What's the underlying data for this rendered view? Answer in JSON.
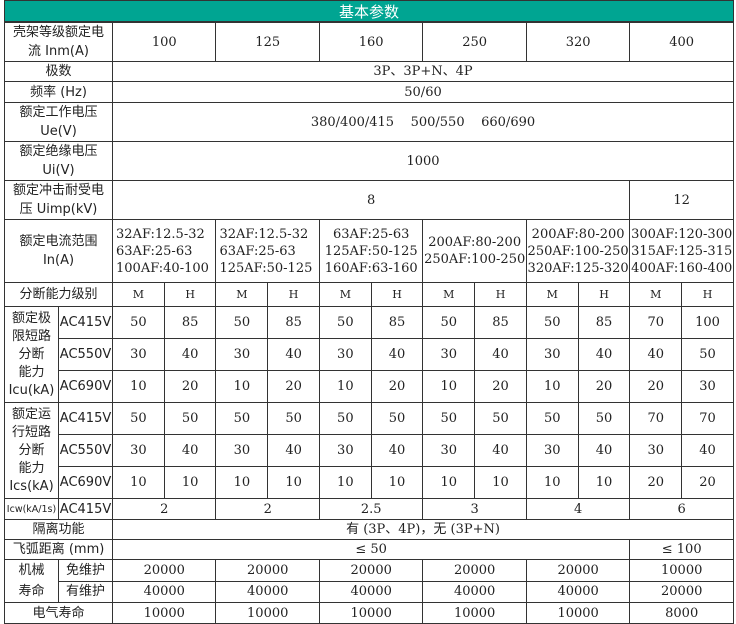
{
  "title": "基本参数",
  "frame_current": {
    "label": "壳架等级额定电\n流 Inm(A)",
    "values": [
      "100",
      "125",
      "160",
      "250",
      "320",
      "400"
    ]
  },
  "poles": {
    "label": "极数",
    "value": "3P、3P+N、4P"
  },
  "frequency": {
    "label": "频率 (Hz)",
    "value": "50/60"
  },
  "ue": {
    "label": "额定工作电压\nUe(V)",
    "value": "380/400/415    500/550    660/690"
  },
  "ui": {
    "label": "额定绝缘电压\nUi(V)",
    "value": "1000"
  },
  "uimp": {
    "label": "额定冲击耐受电\n压 Uimp(kV)",
    "values": [
      "8",
      "12"
    ]
  },
  "in_range": {
    "label": "额定电流范围\nIn(A)",
    "values": [
      "32AF:12.5-32\n63AF:25-63\n100AF:40-100",
      "32AF:12.5-32\n63AF:25-63\n125AF:50-125",
      "63AF:25-63\n125AF:50-125\n160AF:63-160",
      "200AF:80-200\n250AF:100-250",
      "200AF:80-200\n250AF:100-250\n320AF:125-320",
      "300AF:120-300\n315AF:125-315\n400AF:160-400"
    ]
  },
  "breaking_level": {
    "label": "分断能力级别",
    "values": [
      "M",
      "H",
      "M",
      "H",
      "M",
      "H",
      "M",
      "H",
      "M",
      "H",
      "M",
      "H"
    ]
  },
  "icu": {
    "label": "额定极\n限短路\n分断\n能力\nIcu(kA)",
    "rows": [
      {
        "voltage": "AC415V",
        "values": [
          "50",
          "85",
          "50",
          "85",
          "50",
          "85",
          "50",
          "85",
          "50",
          "85",
          "70",
          "100"
        ]
      },
      {
        "voltage": "AC550V",
        "values": [
          "30",
          "40",
          "30",
          "40",
          "30",
          "40",
          "30",
          "40",
          "30",
          "40",
          "40",
          "50"
        ]
      },
      {
        "voltage": "AC690V",
        "values": [
          "10",
          "20",
          "10",
          "20",
          "10",
          "20",
          "10",
          "20",
          "10",
          "20",
          "20",
          "30"
        ]
      }
    ]
  },
  "ics": {
    "label": "额定运\n行短路\n分断\n能力\nIcs(kA)",
    "rows": [
      {
        "voltage": "AC415V",
        "values": [
          "50",
          "50",
          "50",
          "50",
          "50",
          "50",
          "50",
          "50",
          "50",
          "50",
          "70",
          "70"
        ]
      },
      {
        "voltage": "AC550V",
        "values": [
          "30",
          "40",
          "30",
          "40",
          "30",
          "40",
          "30",
          "40",
          "30",
          "40",
          "30",
          "40"
        ]
      },
      {
        "voltage": "AC690V",
        "values": [
          "10",
          "10",
          "10",
          "10",
          "10",
          "10",
          "10",
          "10",
          "10",
          "10",
          "20",
          "20"
        ]
      }
    ]
  },
  "icw": {
    "label": "Icw(kA/1s)",
    "voltage": "AC415V",
    "values": [
      "2",
      "2",
      "2.5",
      "3",
      "4",
      "6"
    ]
  },
  "isolation": {
    "label": "隔离功能",
    "value": "有 (3P、4P)，无 (3P+N)"
  },
  "arc_distance": {
    "label": "飞弧距离 (mm)",
    "values": [
      "≤ 50",
      "≤ 100"
    ]
  },
  "mech_life": {
    "label": "机械\n寿命",
    "rows": [
      {
        "label": "免维护",
        "values": [
          "20000",
          "20000",
          "20000",
          "20000",
          "20000",
          "10000"
        ]
      },
      {
        "label": "有维护",
        "values": [
          "40000",
          "40000",
          "40000",
          "40000",
          "40000",
          "20000"
        ]
      }
    ]
  },
  "elec_life": {
    "label": "电气寿命",
    "values": [
      "10000",
      "10000",
      "10000",
      "10000",
      "10000",
      "8000"
    ]
  }
}
